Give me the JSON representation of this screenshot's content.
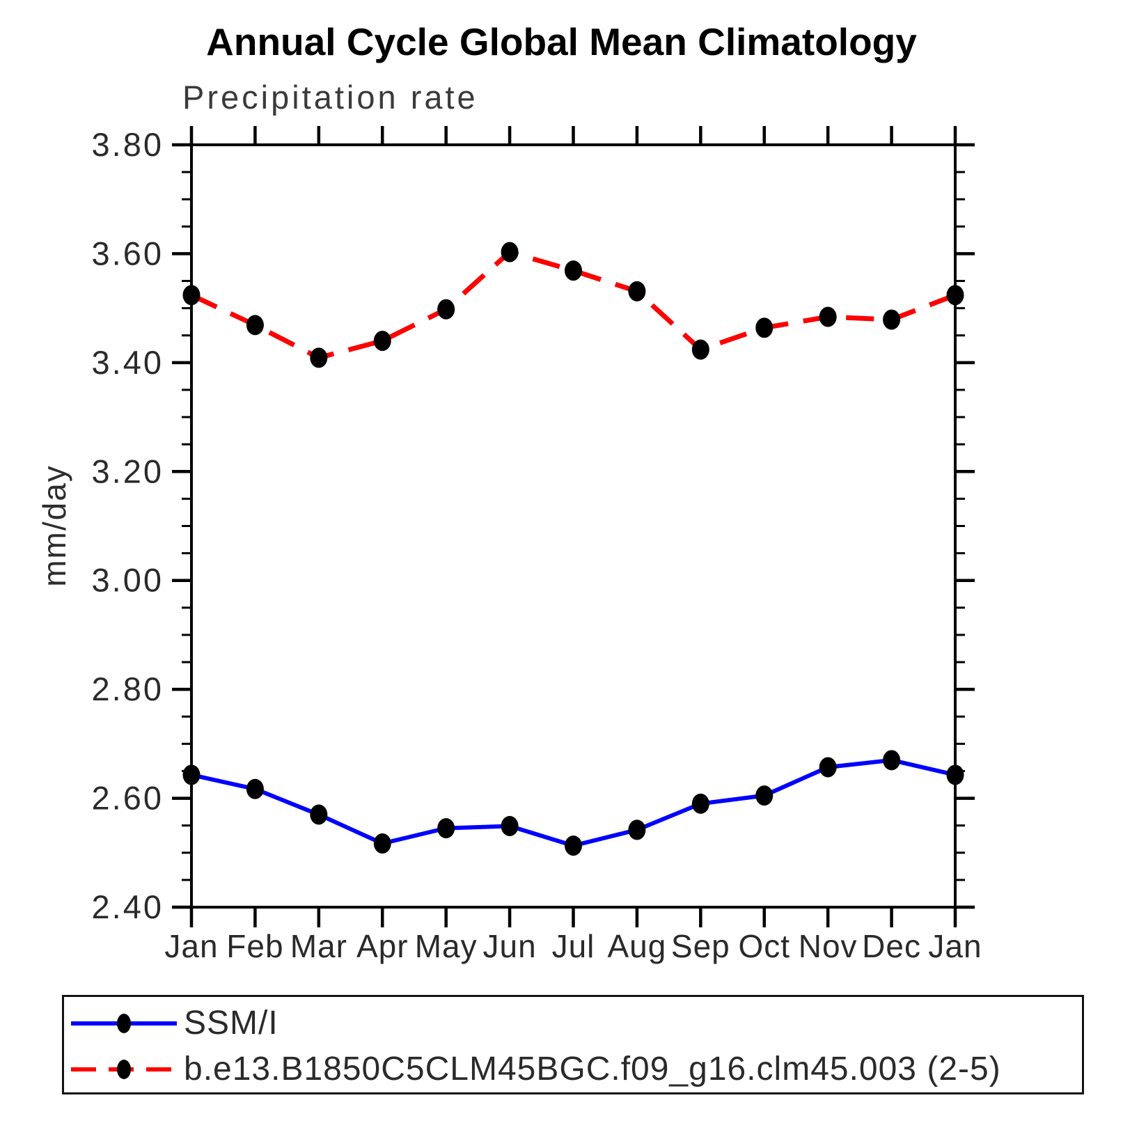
{
  "page": {
    "background": "#ffffff",
    "text_color": "#2a2a2a",
    "axis_color": "#000000"
  },
  "chart_data": {
    "type": "line",
    "title": "Annual Cycle Global Mean Climatology",
    "subtitle": "Precipitation rate",
    "ylabel": "mm/day",
    "xlabel": "",
    "categories": [
      "Jan",
      "Feb",
      "Mar",
      "Apr",
      "May",
      "Jun",
      "Jul",
      "Aug",
      "Sep",
      "Oct",
      "Nov",
      "Dec",
      "Jan"
    ],
    "ylim": [
      2.4,
      3.8
    ],
    "ytick_major_step": 0.2,
    "ytick_minor_step": 0.05,
    "ytick_labels": [
      "3.80",
      "3.60",
      "3.40",
      "3.20",
      "3.00",
      "2.80",
      "2.60",
      "2.40"
    ],
    "grid": false,
    "legend_position": "bottom",
    "marker": "filled-circle",
    "marker_color": "#000000",
    "series": [
      {
        "name": "SSM/I",
        "color": "#0000ff",
        "style": "solid",
        "values": [
          2.643,
          2.617,
          2.57,
          2.517,
          2.545,
          2.549,
          2.513,
          2.542,
          2.59,
          2.605,
          2.657,
          2.67,
          2.643
        ]
      },
      {
        "name": "b.e13.B1850C5CLM45BGC.f09_g16.clm45.003 (2-5)",
        "color": "#ff0000",
        "style": "dashed",
        "values": [
          3.524,
          3.469,
          3.409,
          3.44,
          3.498,
          3.603,
          3.569,
          3.531,
          3.424,
          3.464,
          3.484,
          3.479,
          3.524
        ]
      }
    ]
  }
}
